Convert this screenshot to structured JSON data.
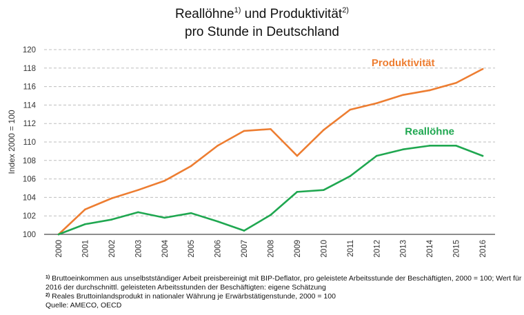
{
  "chart_data": {
    "type": "line",
    "title_line1_part1": "Reallöhne",
    "title_sup1": "1)",
    "title_line1_part2": " und Produktivität",
    "title_sup2": "2)",
    "title_line2": "pro Stunde in Deutschland",
    "title": "Reallöhne1) und Produktivität2) pro Stunde in Deutschland",
    "xlabel": "",
    "ylabel": "Index 2000 = 100",
    "ylim": [
      100,
      120
    ],
    "yticks": [
      100,
      102,
      104,
      106,
      108,
      110,
      112,
      114,
      116,
      118,
      120
    ],
    "grid": "horizontal dashed",
    "x": [
      "2000",
      "2001",
      "2002",
      "2003",
      "2004",
      "2005",
      "2006",
      "2007",
      "2008",
      "2009",
      "2010",
      "2011",
      "2012",
      "2013",
      "2014",
      "2015",
      "2016"
    ],
    "series": [
      {
        "name": "Produktivität",
        "color": "#ED7D31",
        "values": [
          100.0,
          102.7,
          103.9,
          104.8,
          105.8,
          107.4,
          109.6,
          111.2,
          111.4,
          108.5,
          111.3,
          113.5,
          114.2,
          115.1,
          115.6,
          116.4,
          117.9
        ],
        "label_anchor_year": "2013",
        "label_anchor_value": 118.2
      },
      {
        "name": "Reallöhne",
        "color": "#1FA750",
        "values": [
          100.0,
          101.1,
          101.6,
          102.4,
          101.8,
          102.3,
          101.4,
          100.4,
          102.1,
          104.6,
          104.8,
          106.3,
          108.5,
          109.2,
          109.6,
          109.6,
          108.5
        ],
        "label_anchor_year": "2014",
        "label_anchor_value": 110.8
      }
    ]
  },
  "footnotes": {
    "note1_marker": "1)",
    "note1_line1": " Bruttoeinkommen aus unselbstständiger Arbeit preisbereinigt mit BIP-Deflator, pro geleistete Arbeitsstunde der Beschäftigten, 2000 = 100; Wert für",
    "note1_line2": "2016 der durchschnittl. geleisteten Arbeitsstunden der Beschäftigten: eigene Schätzung",
    "note2_marker": "2)",
    "note2_line1": " Reales Bruttoinlandsprodukt in nationaler Währung je Erwärbstätigenstunde, 2000 = 100",
    "source": "Quelle: AMECO, OECD"
  }
}
